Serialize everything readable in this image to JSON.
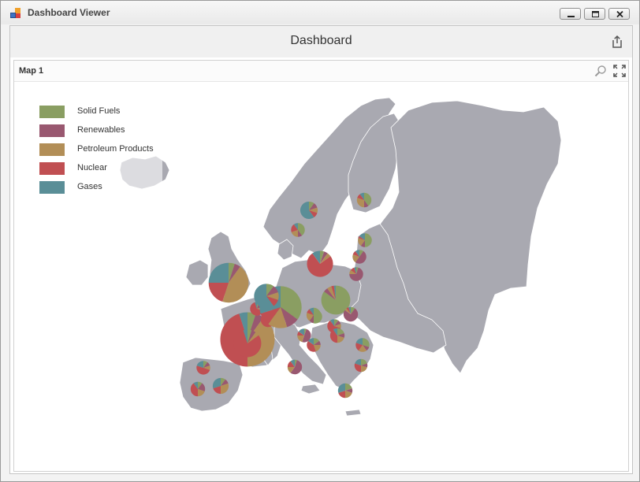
{
  "window": {
    "title": "Dashboard Viewer"
  },
  "dashboard": {
    "title": "Dashboard"
  },
  "panel": {
    "title": "Map 1"
  },
  "colors": {
    "map_fill": "#a9a9b1",
    "map_border": "#ffffff",
    "solid_fuels": "#8a9e62",
    "renewables": "#995870",
    "petroleum_products": "#b28e57",
    "nuclear": "#c04f52",
    "gases": "#5a8e97"
  },
  "legend": {
    "items": [
      {
        "label": "Solid Fuels",
        "color": "#8a9e62"
      },
      {
        "label": "Renewables",
        "color": "#995870"
      },
      {
        "label": "Petroleum Products",
        "color": "#b28e57"
      },
      {
        "label": "Nuclear",
        "color": "#c04f52"
      },
      {
        "label": "Gases",
        "color": "#5a8e97"
      }
    ]
  },
  "icons": {
    "app": "dashboard-app-icon",
    "minimize": "minimize-icon",
    "maximize": "maximize-icon",
    "close": "close-icon",
    "export": "export-icon",
    "clear_selection": "zoom-search-icon",
    "fullscreen": "fullscreen-icon"
  },
  "chart_data": {
    "type": "pie",
    "series_names": [
      "Solid Fuels",
      "Renewables",
      "Petroleum Products",
      "Nuclear",
      "Gases"
    ],
    "note_units": "relative shares; sizes are relative totals",
    "countries": [
      {
        "total": 5.5,
        "values": [
          5,
          5,
          45,
          20,
          25
        ]
      },
      {
        "total": 7.5,
        "values": [
          5,
          5,
          40,
          45,
          5
        ]
      },
      {
        "total": 2.6,
        "values": [
          10,
          10,
          40,
          20,
          20
        ]
      },
      {
        "total": 3.6,
        "values": [
          5,
          5,
          5,
          75,
          10
        ]
      },
      {
        "total": 1.9,
        "values": [
          50,
          10,
          20,
          5,
          15
        ]
      },
      {
        "total": 1.9,
        "values": [
          10,
          50,
          20,
          10,
          10
        ]
      },
      {
        "total": 1.9,
        "values": [
          5,
          70,
          10,
          10,
          5
        ]
      },
      {
        "total": 1.9,
        "values": [
          5,
          15,
          10,
          65,
          5
        ]
      },
      {
        "total": 2.0,
        "values": [
          5,
          15,
          10,
          60,
          10
        ]
      },
      {
        "total": 2.0,
        "values": [
          5,
          60,
          10,
          20,
          5
        ]
      },
      {
        "total": 3.0,
        "values": [
          30,
          10,
          15,
          10,
          35
        ]
      },
      {
        "total": 1.9,
        "values": [
          55,
          5,
          15,
          5,
          20
        ]
      },
      {
        "total": 1.9,
        "values": [
          10,
          10,
          10,
          60,
          10
        ]
      },
      {
        "total": 2.0,
        "values": [
          20,
          10,
          20,
          40,
          10
        ]
      },
      {
        "total": 1.9,
        "values": [
          5,
          50,
          20,
          10,
          15
        ]
      },
      {
        "total": 1.9,
        "values": [
          15,
          10,
          20,
          40,
          15
        ]
      },
      {
        "total": 1.9,
        "values": [
          30,
          10,
          20,
          20,
          20
        ]
      },
      {
        "total": 1.8,
        "values": [
          20,
          10,
          20,
          30,
          20
        ]
      },
      {
        "total": 2.0,
        "values": [
          20,
          10,
          20,
          20,
          30
        ]
      },
      {
        "total": 1.9,
        "values": [
          40,
          10,
          20,
          20,
          10
        ]
      },
      {
        "total": 4.0,
        "values": [
          85,
          5,
          5,
          3,
          2
        ]
      },
      {
        "total": 5.8,
        "values": [
          35,
          10,
          15,
          10,
          30
        ]
      },
      {
        "total": 3.8,
        "values": [
          5,
          5,
          5,
          80,
          5
        ]
      },
      {
        "total": 3.4,
        "values": [
          10,
          10,
          10,
          10,
          60
        ]
      },
      {
        "total": 1.9,
        "values": [
          10,
          10,
          10,
          50,
          20
        ]
      },
      {
        "total": 2.2,
        "values": [
          10,
          10,
          30,
          20,
          30
        ]
      },
      {
        "total": 2.0,
        "values": [
          10,
          20,
          20,
          40,
          10
        ]
      },
      {
        "total": 2.0,
        "values": [
          5,
          55,
          15,
          15,
          10
        ]
      },
      {
        "total": 2.0,
        "values": [
          50,
          10,
          20,
          10,
          10
        ]
      },
      {
        "total": 2.0,
        "values": [
          10,
          75,
          5,
          5,
          5
        ]
      },
      {
        "total": 2.0,
        "values": [
          40,
          10,
          30,
          10,
          10
        ]
      },
      {
        "total": 2.4,
        "values": [
          10,
          10,
          10,
          10,
          60
        ]
      }
    ]
  }
}
